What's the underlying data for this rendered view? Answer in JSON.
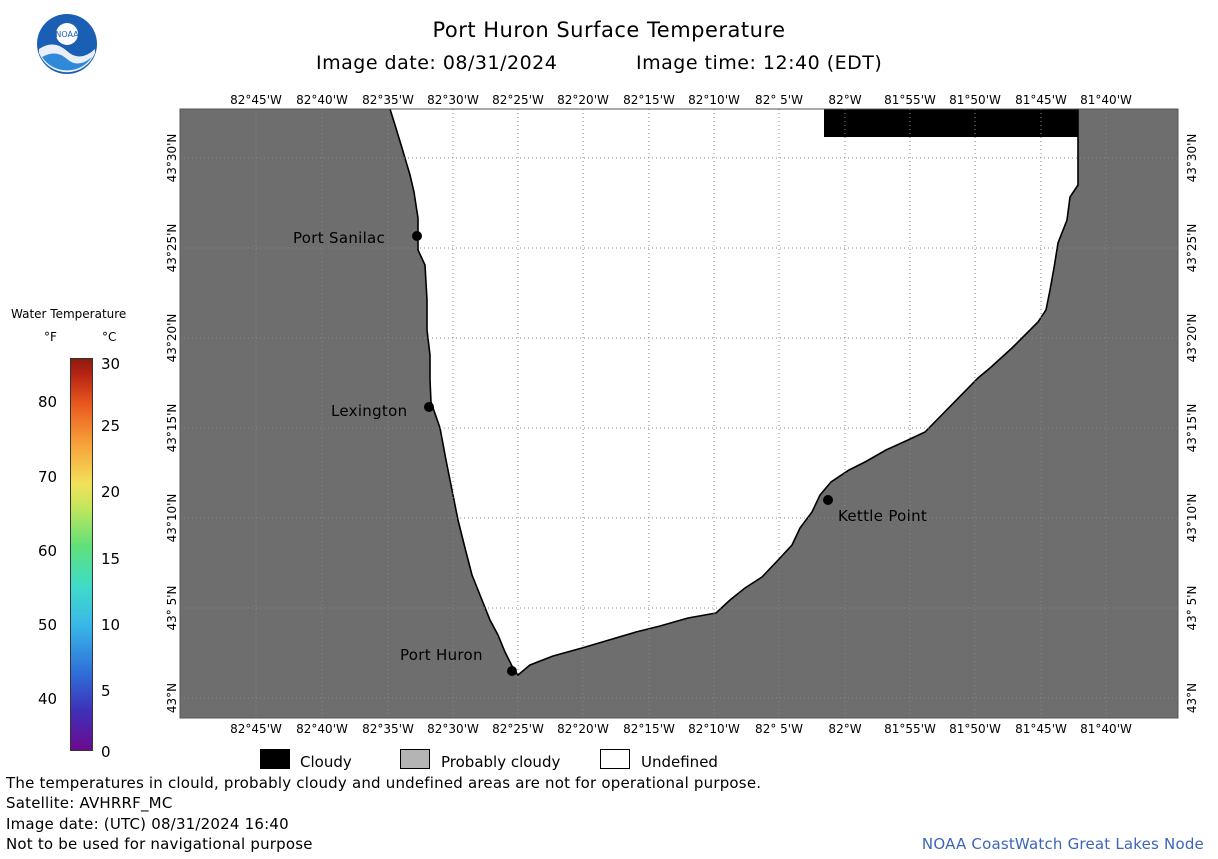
{
  "header": {
    "title": "Port Huron Surface Temperature",
    "image_date": "Image date: 08/31/2024",
    "image_time": "Image time: 12:40 (EDT)",
    "logo_text": "NOAA"
  },
  "map": {
    "lon_ticks": [
      "82°45'W",
      "82°40'W",
      "82°35'W",
      "82°30'W",
      "82°25'W",
      "82°20'W",
      "82°15'W",
      "82°10'W",
      "82° 5'W",
      "82°W",
      "81°55'W",
      "81°50'W",
      "81°45'W",
      "81°40'W"
    ],
    "lat_ticks": [
      "43°30'N",
      "43°25'N",
      "43°20'N",
      "43°15'N",
      "43°10'N",
      "43° 5'N",
      "43°N"
    ],
    "places": {
      "port_sanilac": "Port Sanilac",
      "lexington": "Lexington",
      "kettle_point": "Kettle Point",
      "port_huron": "Port Huron"
    },
    "colors": {
      "land": "#6e6e6e",
      "water_undefined": "#ffffff",
      "cloudy": "#000000",
      "probably_cloudy": "#b4b4b4",
      "grid": "#888888"
    }
  },
  "legend": {
    "title": "Water Temperature",
    "unit_f": "°F",
    "unit_c": "°C",
    "f_labels": [
      "80",
      "70",
      "60",
      "50",
      "40"
    ],
    "c_labels": [
      "30",
      "25",
      "20",
      "15",
      "10",
      "5",
      "0"
    ]
  },
  "key": {
    "cloudy": "Cloudy",
    "probably_cloudy": "Probably cloudy",
    "undefined": "Undefined"
  },
  "footer": {
    "line1": "The temperatures in clould, probably cloudy and undefined areas are not for operational purpose.",
    "line2": "Satellite: AVHRRF_MC",
    "line3": "Image date: (UTC) 08/31/2024  16:40",
    "line4": "Not to be used for navigational purpose",
    "credit": "NOAA CoastWatch Great Lakes Node"
  }
}
